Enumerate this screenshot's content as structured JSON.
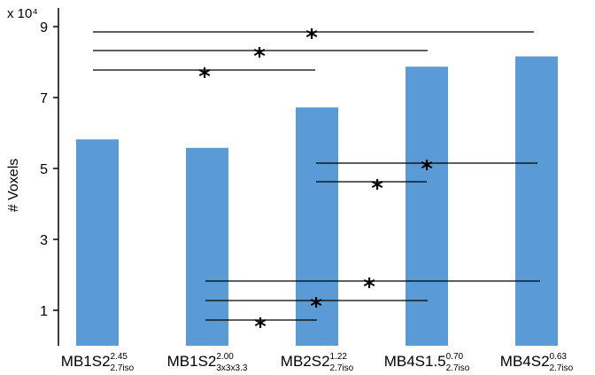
{
  "chart_data": {
    "type": "bar",
    "title": "",
    "ylabel": "# Voxels",
    "xlabel": "",
    "y_multiplier_label": "x 10⁴",
    "ylim": [
      0,
      90000
    ],
    "yticks": [
      1,
      3,
      5,
      7,
      9
    ],
    "grid": false,
    "bar_color": "#5b9bd5",
    "categories": [
      {
        "base": "MB1S2",
        "sup": "2.45",
        "sub": "2.7iso"
      },
      {
        "base": "MB1S2",
        "sup": "2.00",
        "sub": "3x3x3.3"
      },
      {
        "base": "MB2S2",
        "sup": "1.22",
        "sub": "2.7iso"
      },
      {
        "base": "MB4S1.5",
        "sup": "0.70",
        "sub": "2.7iso"
      },
      {
        "base": "MB4S2",
        "sup": "0.63",
        "sub": "2.7iso"
      }
    ],
    "values": [
      58200,
      55800,
      67200,
      78700,
      81600
    ],
    "significance": [
      {
        "from": 0,
        "to": 4,
        "label": "*"
      },
      {
        "from": 0,
        "to": 3,
        "label": "*"
      },
      {
        "from": 0,
        "to": 2,
        "label": "*"
      },
      {
        "from": 2,
        "to": 4,
        "label": "*"
      },
      {
        "from": 2,
        "to": 3,
        "label": "*"
      },
      {
        "from": 1,
        "to": 4,
        "label": "*"
      },
      {
        "from": 1,
        "to": 3,
        "label": "*"
      },
      {
        "from": 1,
        "to": 2,
        "label": "*"
      }
    ]
  }
}
